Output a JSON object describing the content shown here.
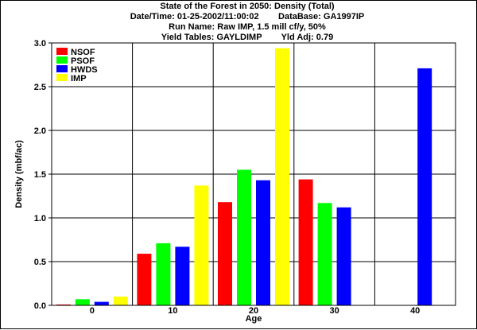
{
  "header": {
    "line1": "State of the Forest in 2050: Density (Total)",
    "line2": "Date/Time: 01-25-2002/11:00:02        DataBase: GA1997IP",
    "line3": "Run Name: Raw IMP, 1.5 mill cf/y, 50%",
    "line4": "Yield Tables: GAYLDIMP        Yld Adj: 0.79"
  },
  "chart_data": {
    "type": "bar",
    "title": "State of the Forest in 2050: Density (Total)",
    "xlabel": "Age",
    "ylabel": "Density (mbf/ac)",
    "categories": [
      "0",
      "10",
      "20",
      "30",
      "40"
    ],
    "ylim": [
      0,
      3.0
    ],
    "yticks": [
      "0.0",
      "0.5",
      "1.0",
      "1.5",
      "2.0",
      "2.5",
      "3.0"
    ],
    "grid": true,
    "legend_position": "top-left",
    "series": [
      {
        "name": "NSOF",
        "color": "#ff0000",
        "values": [
          0.01,
          0.59,
          1.18,
          1.44,
          0.0
        ]
      },
      {
        "name": "PSOF",
        "color": "#00ff00",
        "values": [
          0.07,
          0.71,
          1.55,
          1.17,
          0.0
        ]
      },
      {
        "name": "HWDS",
        "color": "#0000ff",
        "values": [
          0.04,
          0.67,
          1.43,
          1.12,
          2.71
        ]
      },
      {
        "name": "IMP",
        "color": "#ffff00",
        "values": [
          0.1,
          1.37,
          2.94,
          0.0,
          0.0
        ]
      }
    ]
  }
}
